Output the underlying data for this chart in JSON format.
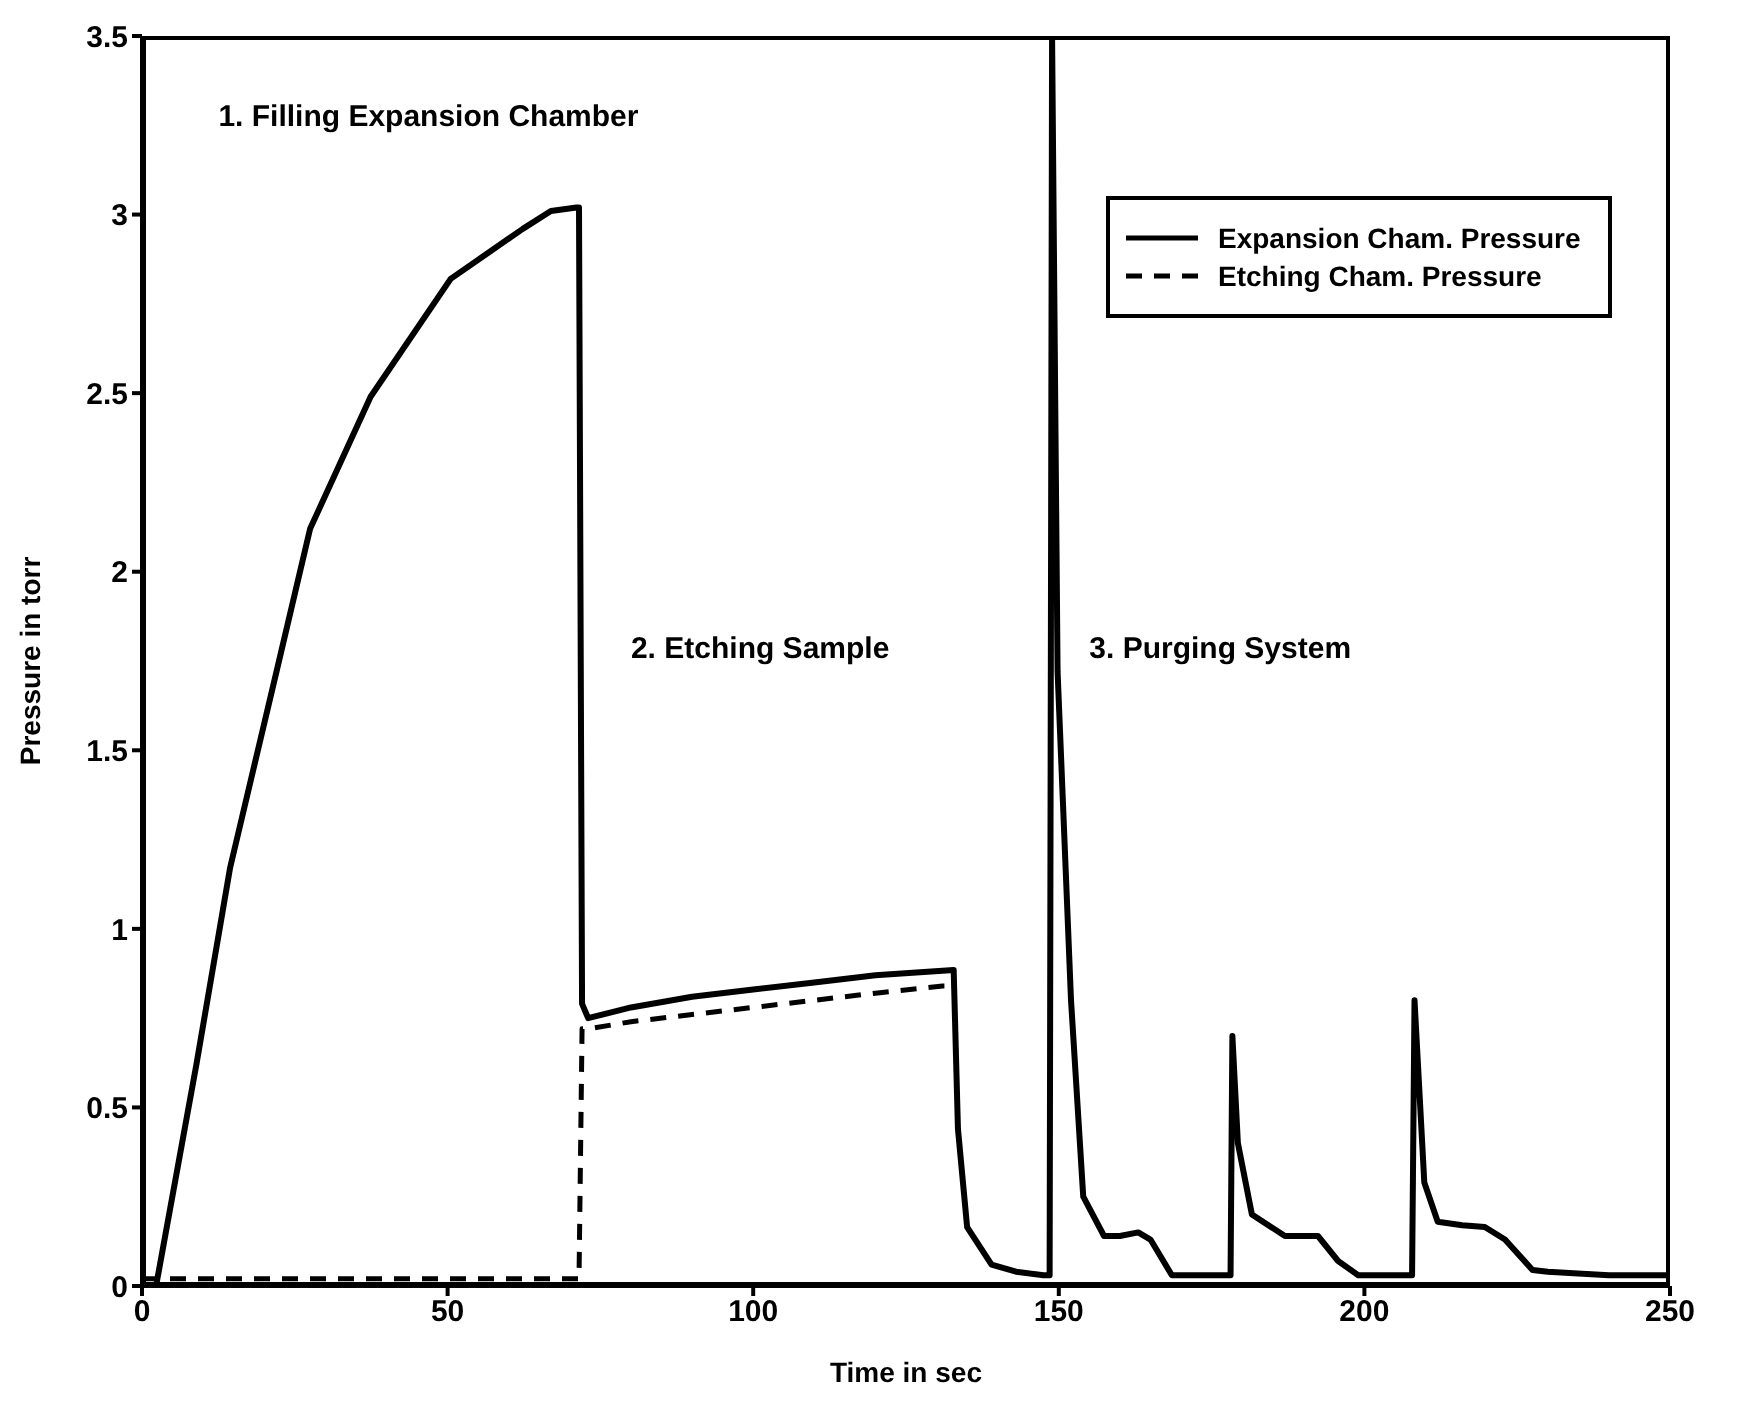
{
  "chart_data": {
    "type": "line",
    "xlabel": "Time in sec",
    "ylabel": "Pressure in torr",
    "xlim": [
      0,
      250
    ],
    "xticks": [
      0,
      50,
      100,
      150,
      200,
      250
    ],
    "ylim": [
      0,
      3.5
    ],
    "yticks": [
      0,
      0.5,
      1,
      1.5,
      2,
      2.5,
      3,
      3.5
    ],
    "legend": "top right",
    "marker": "none",
    "annotations": [
      "1. Filling Expansion Chamber",
      "2. Etching Sample",
      "3. Purging System"
    ],
    "series": [
      {
        "name": "Expansion Cham. Pressure",
        "color": "#000000",
        "line_style": "solid",
        "x": [
          0,
          2.3,
          8.9,
          14.4,
          22,
          27.5,
          37.4,
          50.5,
          62.3,
          66.9,
          71.1,
          71.5,
          72,
          73,
          80,
          90,
          100,
          110,
          120,
          132.8,
          133.5,
          135,
          139,
          143,
          147.5,
          148.5,
          148.9,
          149.8,
          152,
          154,
          157.4,
          160,
          163,
          165,
          168.5,
          172,
          177.7,
          178.1,
          178.4,
          179.3,
          181.6,
          187,
          192.4,
          195.7,
          199,
          205,
          207.8,
          208.2,
          209.8,
          212,
          216,
          219.7,
          223,
          227.5,
          230,
          240,
          250
        ],
        "values": [
          0,
          0,
          0.62,
          1.17,
          1.72,
          2.12,
          2.49,
          2.82,
          2.96,
          3.01,
          3.02,
          3.02,
          0.79,
          0.75,
          0.78,
          0.81,
          0.83,
          0.85,
          0.87,
          0.885,
          0.44,
          0.165,
          0.06,
          0.04,
          0.03,
          0.03,
          3.5,
          1.72,
          0.8,
          0.25,
          0.14,
          0.14,
          0.15,
          0.13,
          0.03,
          0.03,
          0.03,
          0.03,
          0.7,
          0.4,
          0.2,
          0.14,
          0.14,
          0.07,
          0.03,
          0.03,
          0.03,
          0.8,
          0.29,
          0.18,
          0.17,
          0.165,
          0.13,
          0.045,
          0.04,
          0.03,
          0.03
        ]
      },
      {
        "name": "Etching Cham. Pressure",
        "color": "#000000",
        "line_style": "dashed",
        "x": [
          0,
          10,
          30,
          50,
          71.5,
          72,
          73,
          80,
          90,
          100,
          110,
          120,
          131,
          132.8
        ],
        "values": [
          0.02,
          0.02,
          0.02,
          0.02,
          0.02,
          0.72,
          0.72,
          0.74,
          0.76,
          0.78,
          0.8,
          0.82,
          0.84,
          0.84
        ]
      }
    ]
  }
}
